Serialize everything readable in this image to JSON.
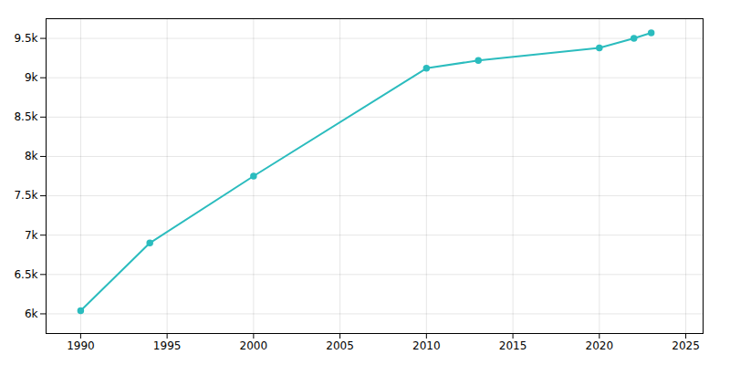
{
  "chart_data": {
    "type": "line",
    "x": [
      1990,
      1994,
      2000,
      2010,
      2013,
      2020,
      2022,
      2023
    ],
    "values": [
      6040,
      6900,
      7750,
      9120,
      9220,
      9380,
      9500,
      9570
    ],
    "color": "#2BBCBE",
    "marker": "circle",
    "xlim": [
      1988,
      2026
    ],
    "ylim": [
      5750,
      9750
    ],
    "xticks": [
      1990,
      1995,
      2000,
      2005,
      2010,
      2015,
      2020,
      2025
    ],
    "yticks": [
      {
        "value": 6000,
        "label": "6k"
      },
      {
        "value": 6500,
        "label": "6.5k"
      },
      {
        "value": 7000,
        "label": "7k"
      },
      {
        "value": 7500,
        "label": "7.5k"
      },
      {
        "value": 8000,
        "label": "8k"
      },
      {
        "value": 8500,
        "label": "8.5k"
      },
      {
        "value": 9000,
        "label": "9k"
      },
      {
        "value": 9500,
        "label": "9.5k"
      }
    ],
    "grid": true
  }
}
